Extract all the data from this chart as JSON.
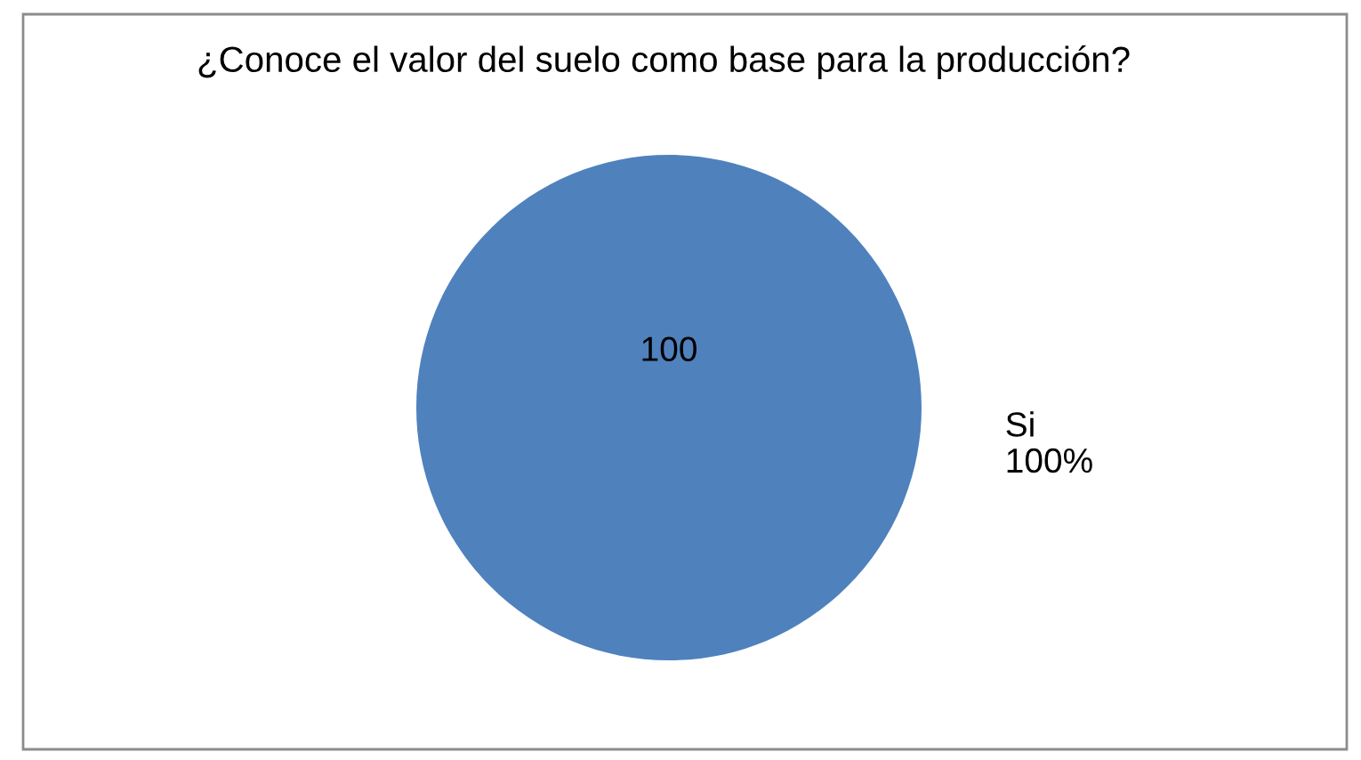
{
  "chart_data": {
    "type": "pie",
    "title": "¿Conoce el valor del suelo como base para la producción?",
    "categories": [
      "Si"
    ],
    "values": [
      100
    ],
    "colors": [
      "#4f81bd"
    ],
    "data_labels": true,
    "annotations": [
      "100%"
    ]
  }
}
